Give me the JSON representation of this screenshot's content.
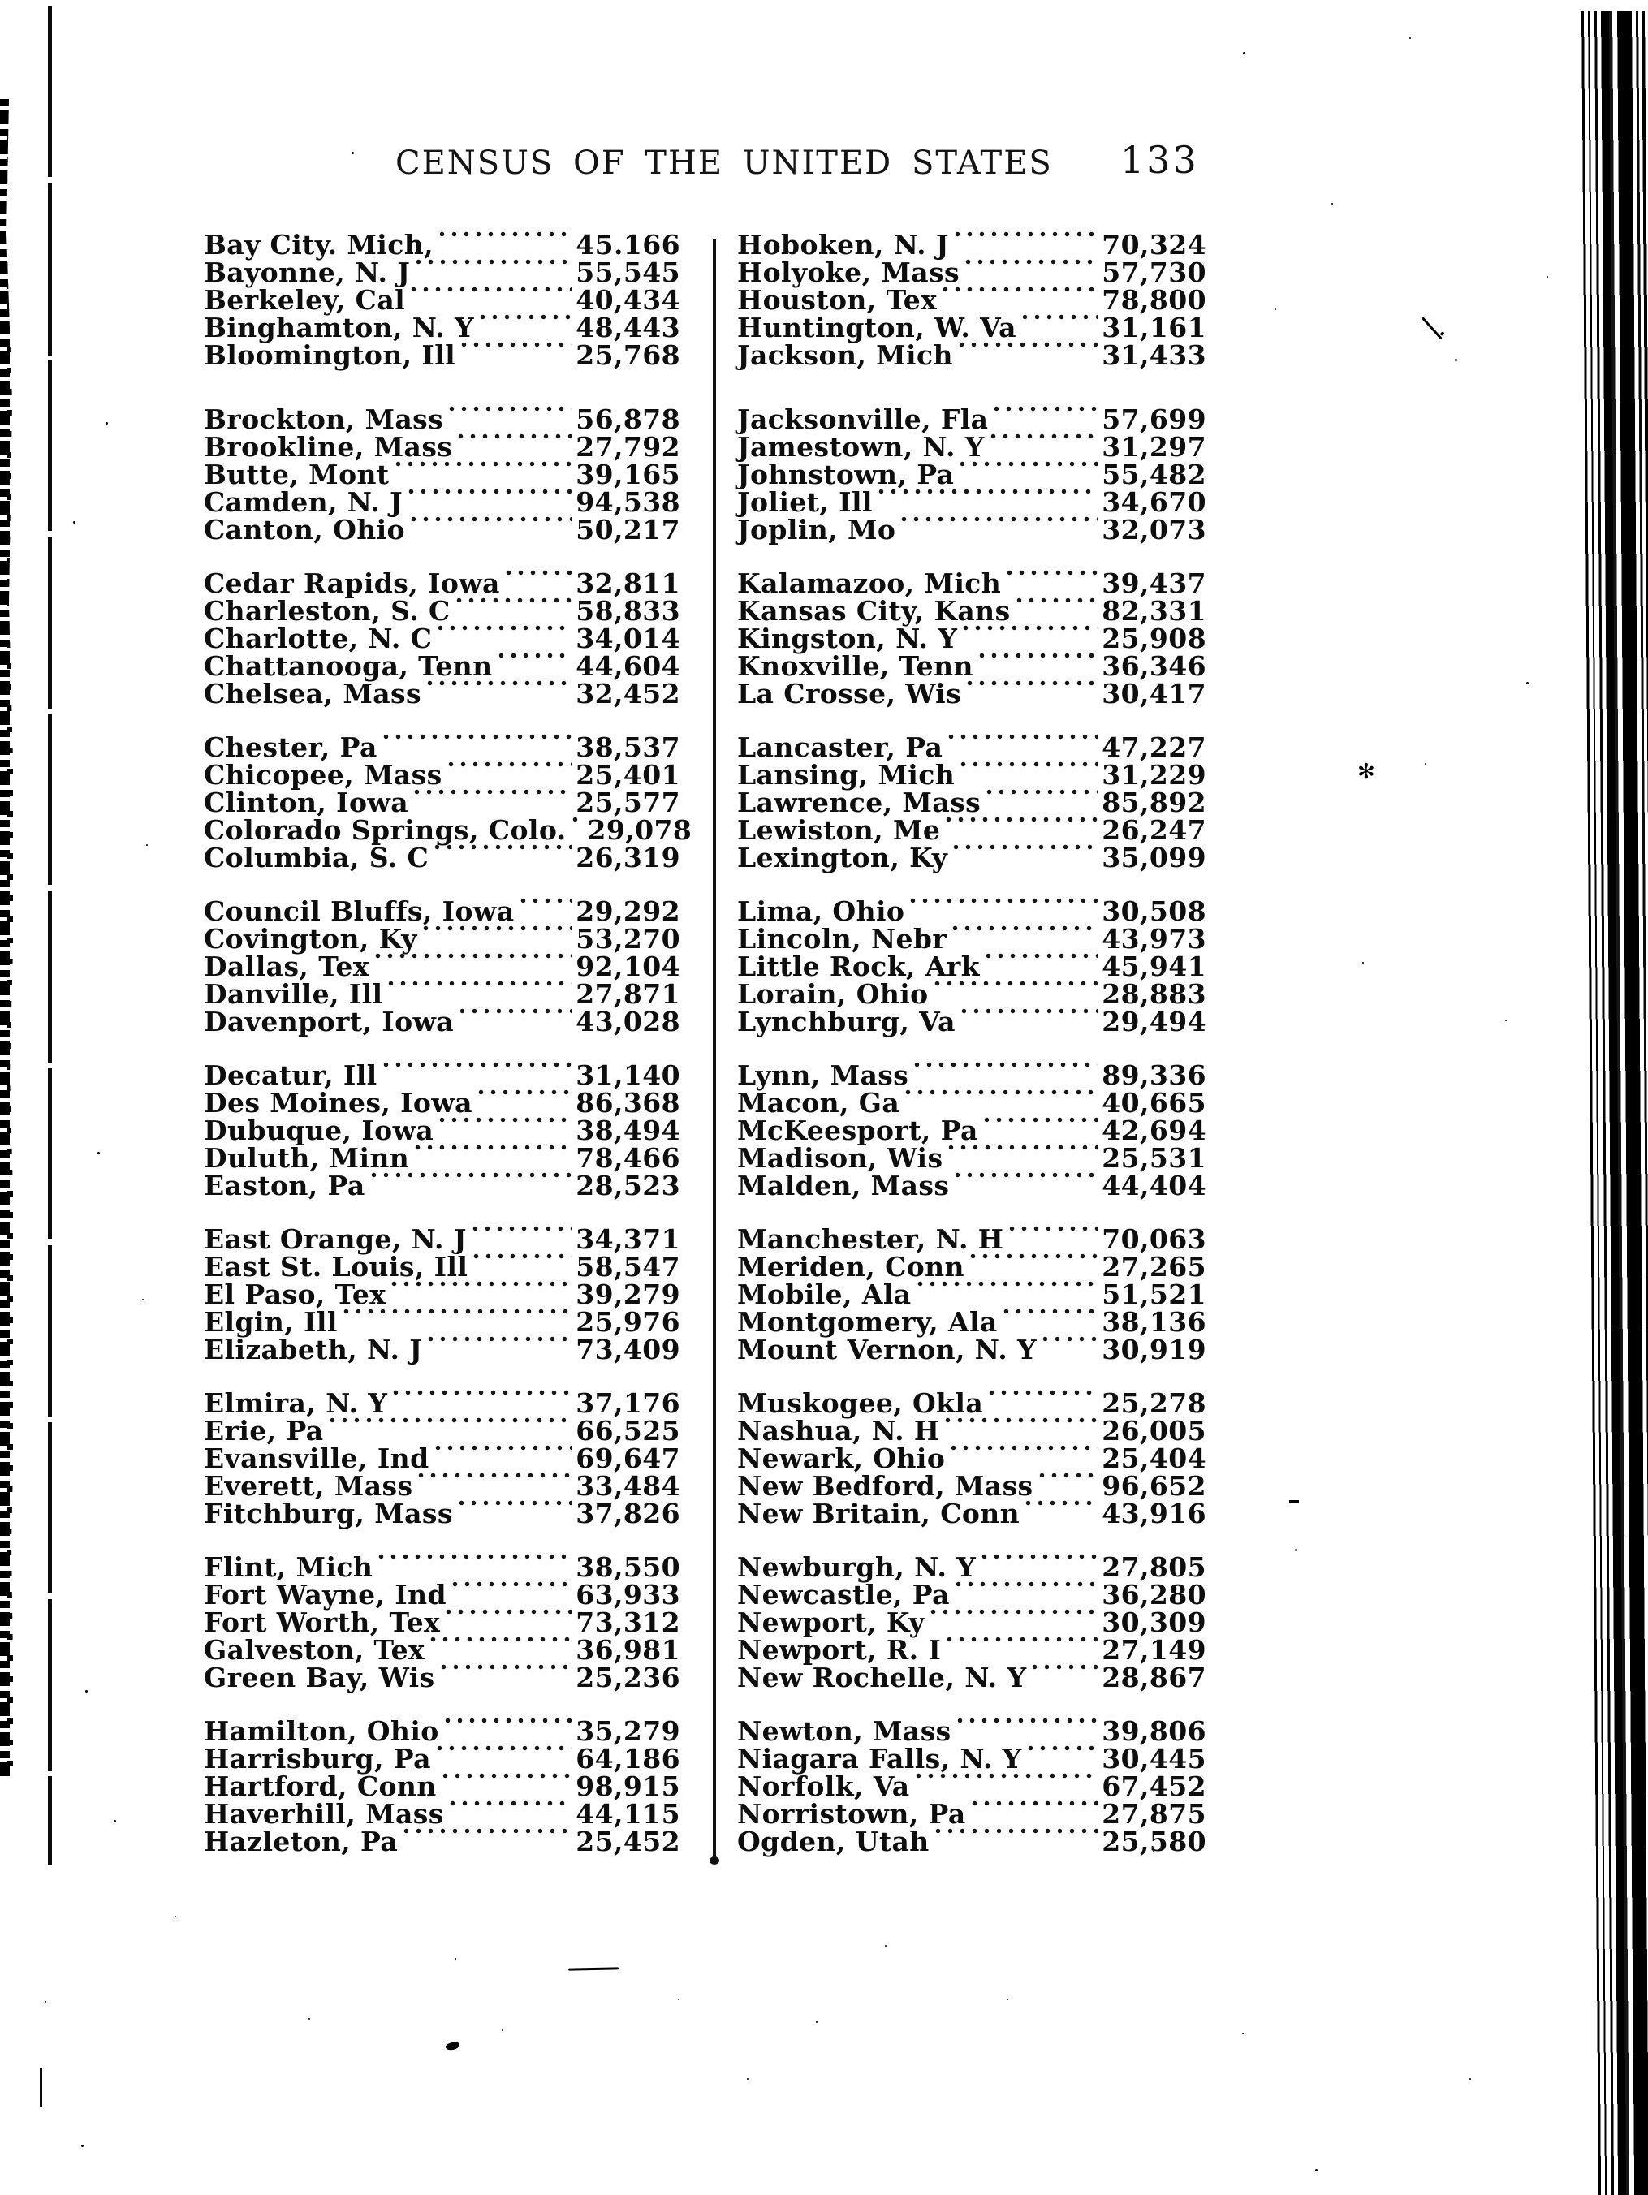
{
  "header": {
    "title": "CENSUS OF THE UNITED STATES",
    "page_number": "133"
  },
  "census_table": {
    "left_column": [
      {
        "entries": [
          {
            "city": "Bay City. Mich,",
            "population": "45.166"
          },
          {
            "city": "Bayonne, N. J",
            "population": "55,545"
          },
          {
            "city": "Berkeley, Cal",
            "population": "40,434"
          },
          {
            "city": "Binghamton, N. Y",
            "population": "48,443"
          },
          {
            "city": "Bloomington, Ill",
            "population": "25,768"
          }
        ]
      },
      {
        "entries": [
          {
            "city": "Brockton, Mass",
            "population": "56,878"
          },
          {
            "city": "Brookline, Mass",
            "population": "27,792"
          },
          {
            "city": "Butte, Mont",
            "population": "39,165"
          },
          {
            "city": "Camden, N. J",
            "population": "94,538"
          },
          {
            "city": "Canton, Ohio",
            "population": "50,217"
          }
        ]
      },
      {
        "entries": [
          {
            "city": "Cedar Rapids, Iowa",
            "population": "32,811"
          },
          {
            "city": "Charleston, S. C",
            "population": "58,833"
          },
          {
            "city": "Charlotte, N. C",
            "population": "34,014"
          },
          {
            "city": "Chattanooga, Tenn",
            "population": "44,604"
          },
          {
            "city": "Chelsea, Mass",
            "population": "32,452"
          }
        ]
      },
      {
        "entries": [
          {
            "city": "Chester, Pa",
            "population": "38,537"
          },
          {
            "city": "Chicopee, Mass",
            "population": "25,401"
          },
          {
            "city": "Clinton, Iowa",
            "population": "25,577"
          },
          {
            "city": "Colorado Springs, Colo.",
            "population": "29,078"
          },
          {
            "city": "Columbia, S. C",
            "population": "26,319"
          }
        ]
      },
      {
        "entries": [
          {
            "city": "Council Bluffs, Iowa",
            "population": "29,292"
          },
          {
            "city": "Covington, Ky",
            "population": "53,270"
          },
          {
            "city": "Dallas, Tex",
            "population": "92,104"
          },
          {
            "city": "Danville, Ill",
            "population": "27,871"
          },
          {
            "city": "Davenport, Iowa",
            "population": "43,028"
          }
        ]
      },
      {
        "entries": [
          {
            "city": "Decatur, Ill",
            "population": "31,140"
          },
          {
            "city": "Des Moines, Iowa",
            "population": "86,368"
          },
          {
            "city": "Dubuque, Iowa",
            "population": "38,494"
          },
          {
            "city": "Duluth, Minn",
            "population": "78,466"
          },
          {
            "city": "Easton, Pa",
            "population": "28,523"
          }
        ]
      },
      {
        "entries": [
          {
            "city": "East Orange, N. J",
            "population": "34,371"
          },
          {
            "city": "East St. Louis, Ill",
            "population": "58,547"
          },
          {
            "city": "El Paso, Tex",
            "population": "39,279"
          },
          {
            "city": "Elgin, Ill",
            "population": "25,976"
          },
          {
            "city": "Elizabeth, N. J",
            "population": "73,409"
          }
        ]
      },
      {
        "entries": [
          {
            "city": "Elmira, N. Y",
            "population": "37,176"
          },
          {
            "city": "Erie, Pa",
            "population": "66,525"
          },
          {
            "city": "Evansville, Ind",
            "population": "69,647"
          },
          {
            "city": "Everett, Mass",
            "population": "33,484"
          },
          {
            "city": "Fitchburg, Mass",
            "population": "37,826"
          }
        ]
      },
      {
        "entries": [
          {
            "city": "Flint, Mich",
            "population": "38,550"
          },
          {
            "city": "Fort Wayne, Ind",
            "population": "63,933"
          },
          {
            "city": "Fort Worth, Tex",
            "population": "73,312"
          },
          {
            "city": "Galveston, Tex",
            "population": "36,981"
          },
          {
            "city": "Green Bay, Wis",
            "population": "25,236"
          }
        ]
      },
      {
        "entries": [
          {
            "city": "Hamilton, Ohio",
            "population": "35,279"
          },
          {
            "city": "Harrisburg, Pa",
            "population": "64,186"
          },
          {
            "city": "Hartford, Conn",
            "population": "98,915"
          },
          {
            "city": "Haverhill, Mass",
            "population": "44,115"
          },
          {
            "city": "Hazleton, Pa",
            "population": "25,452"
          }
        ]
      }
    ],
    "right_column": [
      {
        "entries": [
          {
            "city": "Hoboken, N. J",
            "population": "70,324"
          },
          {
            "city": "Holyoke, Mass",
            "population": "57,730"
          },
          {
            "city": "Houston, Tex",
            "population": "78,800"
          },
          {
            "city": "Huntington, W. Va",
            "population": "31,161"
          },
          {
            "city": "Jackson, Mich",
            "population": "31,433"
          }
        ]
      },
      {
        "entries": [
          {
            "city": "Jacksonville, Fla",
            "population": "57,699"
          },
          {
            "city": "Jamestown, N. Y",
            "population": "31,297"
          },
          {
            "city": "Johnstown, Pa",
            "population": "55,482"
          },
          {
            "city": "Joliet, Ill",
            "population": "34,670"
          },
          {
            "city": "Joplin, Mo",
            "population": "32,073"
          }
        ]
      },
      {
        "entries": [
          {
            "city": "Kalamazoo, Mich",
            "population": "39,437"
          },
          {
            "city": "Kansas City, Kans",
            "population": "82,331"
          },
          {
            "city": "Kingston, N. Y",
            "population": "25,908"
          },
          {
            "city": "Knoxville, Tenn",
            "population": "36,346"
          },
          {
            "city": "La Crosse, Wis",
            "population": "30,417"
          }
        ]
      },
      {
        "entries": [
          {
            "city": "Lancaster, Pa",
            "population": "47,227"
          },
          {
            "city": "Lansing, Mich",
            "population": "31,229"
          },
          {
            "city": "Lawrence, Mass",
            "population": "85,892"
          },
          {
            "city": "Lewiston, Me",
            "population": "26,247"
          },
          {
            "city": "Lexington, Ky",
            "population": "35,099"
          }
        ]
      },
      {
        "entries": [
          {
            "city": "Lima, Ohio",
            "population": "30,508"
          },
          {
            "city": "Lincoln, Nebr",
            "population": "43,973"
          },
          {
            "city": "Little Rock, Ark",
            "population": "45,941"
          },
          {
            "city": "Lorain, Ohio",
            "population": "28,883"
          },
          {
            "city": "Lynchburg, Va",
            "population": "29,494"
          }
        ]
      },
      {
        "entries": [
          {
            "city": "Lynn, Mass",
            "population": "89,336"
          },
          {
            "city": "Macon, Ga",
            "population": "40,665"
          },
          {
            "city": "McKeesport, Pa",
            "population": "42,694"
          },
          {
            "city": "Madison, Wis",
            "population": "25,531"
          },
          {
            "city": "Malden, Mass",
            "population": "44,404"
          }
        ]
      },
      {
        "entries": [
          {
            "city": "Manchester, N. H",
            "population": "70,063"
          },
          {
            "city": "Meriden, Conn",
            "population": "27,265"
          },
          {
            "city": "Mobile, Ala",
            "population": "51,521"
          },
          {
            "city": "Montgomery, Ala",
            "population": "38,136"
          },
          {
            "city": "Mount Vernon, N. Y",
            "population": "30,919"
          }
        ]
      },
      {
        "entries": [
          {
            "city": "Muskogee, Okla",
            "population": "25,278"
          },
          {
            "city": "Nashua, N. H",
            "population": "26,005"
          },
          {
            "city": "Newark, Ohio",
            "population": "25,404"
          },
          {
            "city": "New Bedford, Mass",
            "population": "96,652"
          },
          {
            "city": "New Britain, Conn",
            "population": "43,916"
          }
        ]
      },
      {
        "entries": [
          {
            "city": "Newburgh, N. Y",
            "population": "27,805"
          },
          {
            "city": "Newcastle, Pa",
            "population": "36,280"
          },
          {
            "city": "Newport, Ky",
            "population": "30,309"
          },
          {
            "city": "Newport, R. I",
            "population": "27,149"
          },
          {
            "city": "New Rochelle, N. Y",
            "population": "28,867"
          }
        ]
      },
      {
        "entries": [
          {
            "city": "Newton, Mass",
            "population": "39,806"
          },
          {
            "city": "Niagara Falls, N. Y",
            "population": "30,445"
          },
          {
            "city": "Norfolk, Va",
            "population": "67,452"
          },
          {
            "city": "Norristown, Pa",
            "population": "27,875"
          },
          {
            "city": "Ogden, Utah",
            "population": "25,580"
          }
        ]
      }
    ]
  },
  "marks": {
    "star_glyph": "✻"
  }
}
